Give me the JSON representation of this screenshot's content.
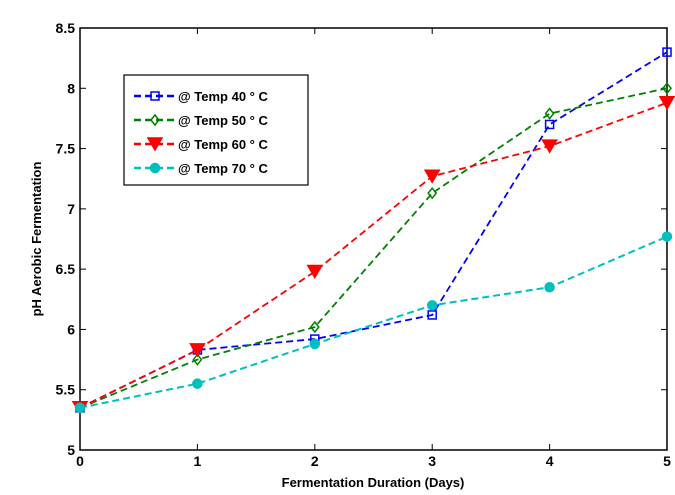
{
  "chart_data": {
    "type": "line",
    "title": "",
    "xlabel": "Fermentation Duration (Days)",
    "ylabel": "pH Aerobic Fermentation",
    "xlim": [
      0,
      5
    ],
    "ylim": [
      5,
      8.5
    ],
    "x_ticks": [
      "0",
      "1",
      "2",
      "3",
      "4",
      "5"
    ],
    "y_ticks": [
      "5",
      "5.5",
      "6",
      "6.5",
      "7",
      "7.5",
      "8",
      "8.5"
    ],
    "grid": false,
    "legend_position": "upper-left",
    "x": [
      0,
      1,
      2,
      3,
      4,
      5
    ],
    "series": [
      {
        "name": "@ Temp 40 ° C",
        "color": "#0000ff",
        "marker": "square",
        "values": [
          5.35,
          5.83,
          5.92,
          6.12,
          7.7,
          8.3
        ]
      },
      {
        "name": "@ Temp 50 ° C",
        "color": "#008000",
        "marker": "diamond",
        "values": [
          5.35,
          5.75,
          6.02,
          7.13,
          7.79,
          8.0
        ]
      },
      {
        "name": "@ Temp 60 ° C",
        "color": "#ff0000",
        "marker": "triangle-down",
        "values": [
          5.35,
          5.83,
          6.48,
          7.27,
          7.52,
          7.88
        ]
      },
      {
        "name": "@ Temp 70 ° C",
        "color": "#00bfbf",
        "marker": "circle",
        "values": [
          5.35,
          5.55,
          5.88,
          6.2,
          6.35,
          6.77
        ]
      }
    ]
  }
}
